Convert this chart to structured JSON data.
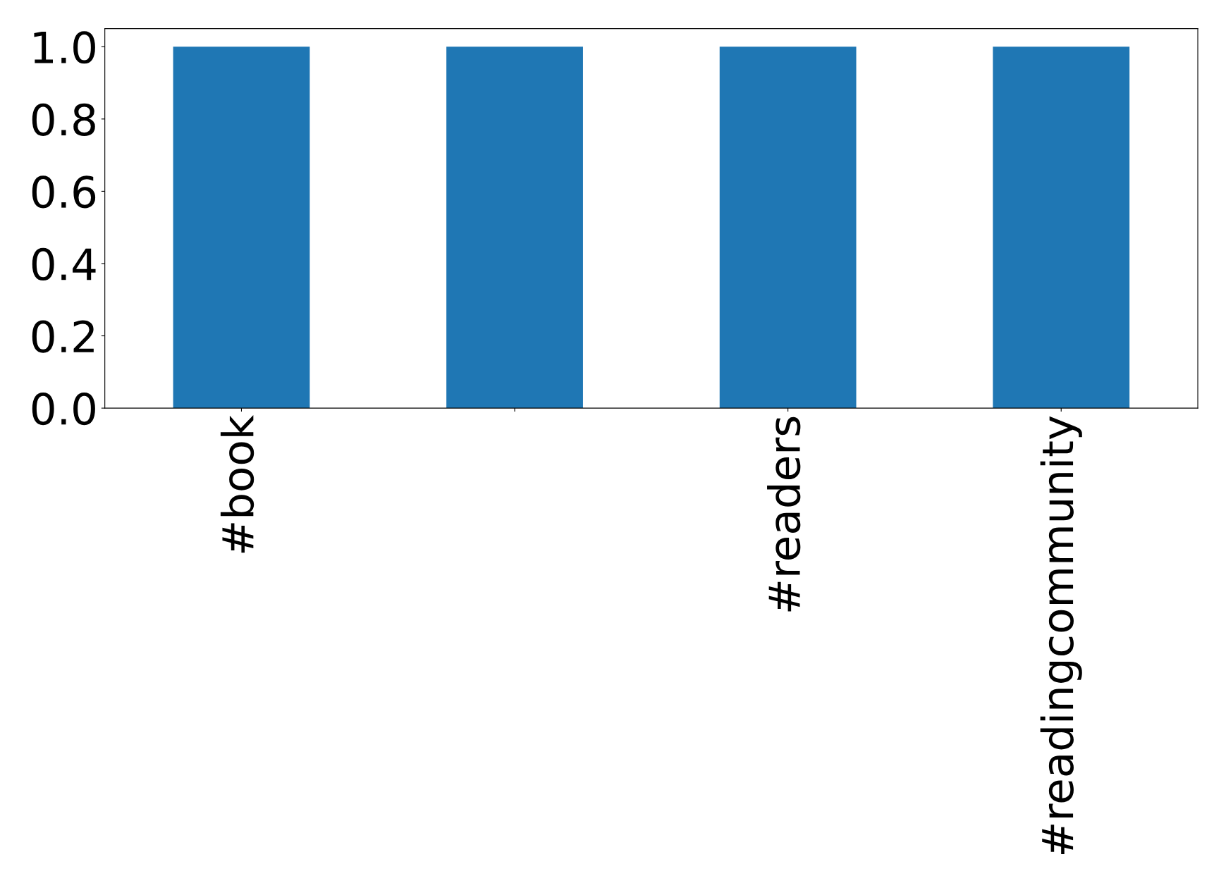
{
  "chart_data": {
    "type": "bar",
    "categories": [
      "#book",
      null,
      "#readers",
      "#readingcommunity"
    ],
    "values": [
      1,
      1,
      1,
      1
    ],
    "color": "#1f77b4",
    "ylim": [
      0,
      1.05
    ],
    "yticks": [
      {
        "value": 0,
        "label": "0.0"
      },
      0.2,
      0.4,
      0.6,
      0.8,
      {
        "value": 1,
        "label": "1.0"
      }
    ],
    "grid": false,
    "legend": false
  }
}
